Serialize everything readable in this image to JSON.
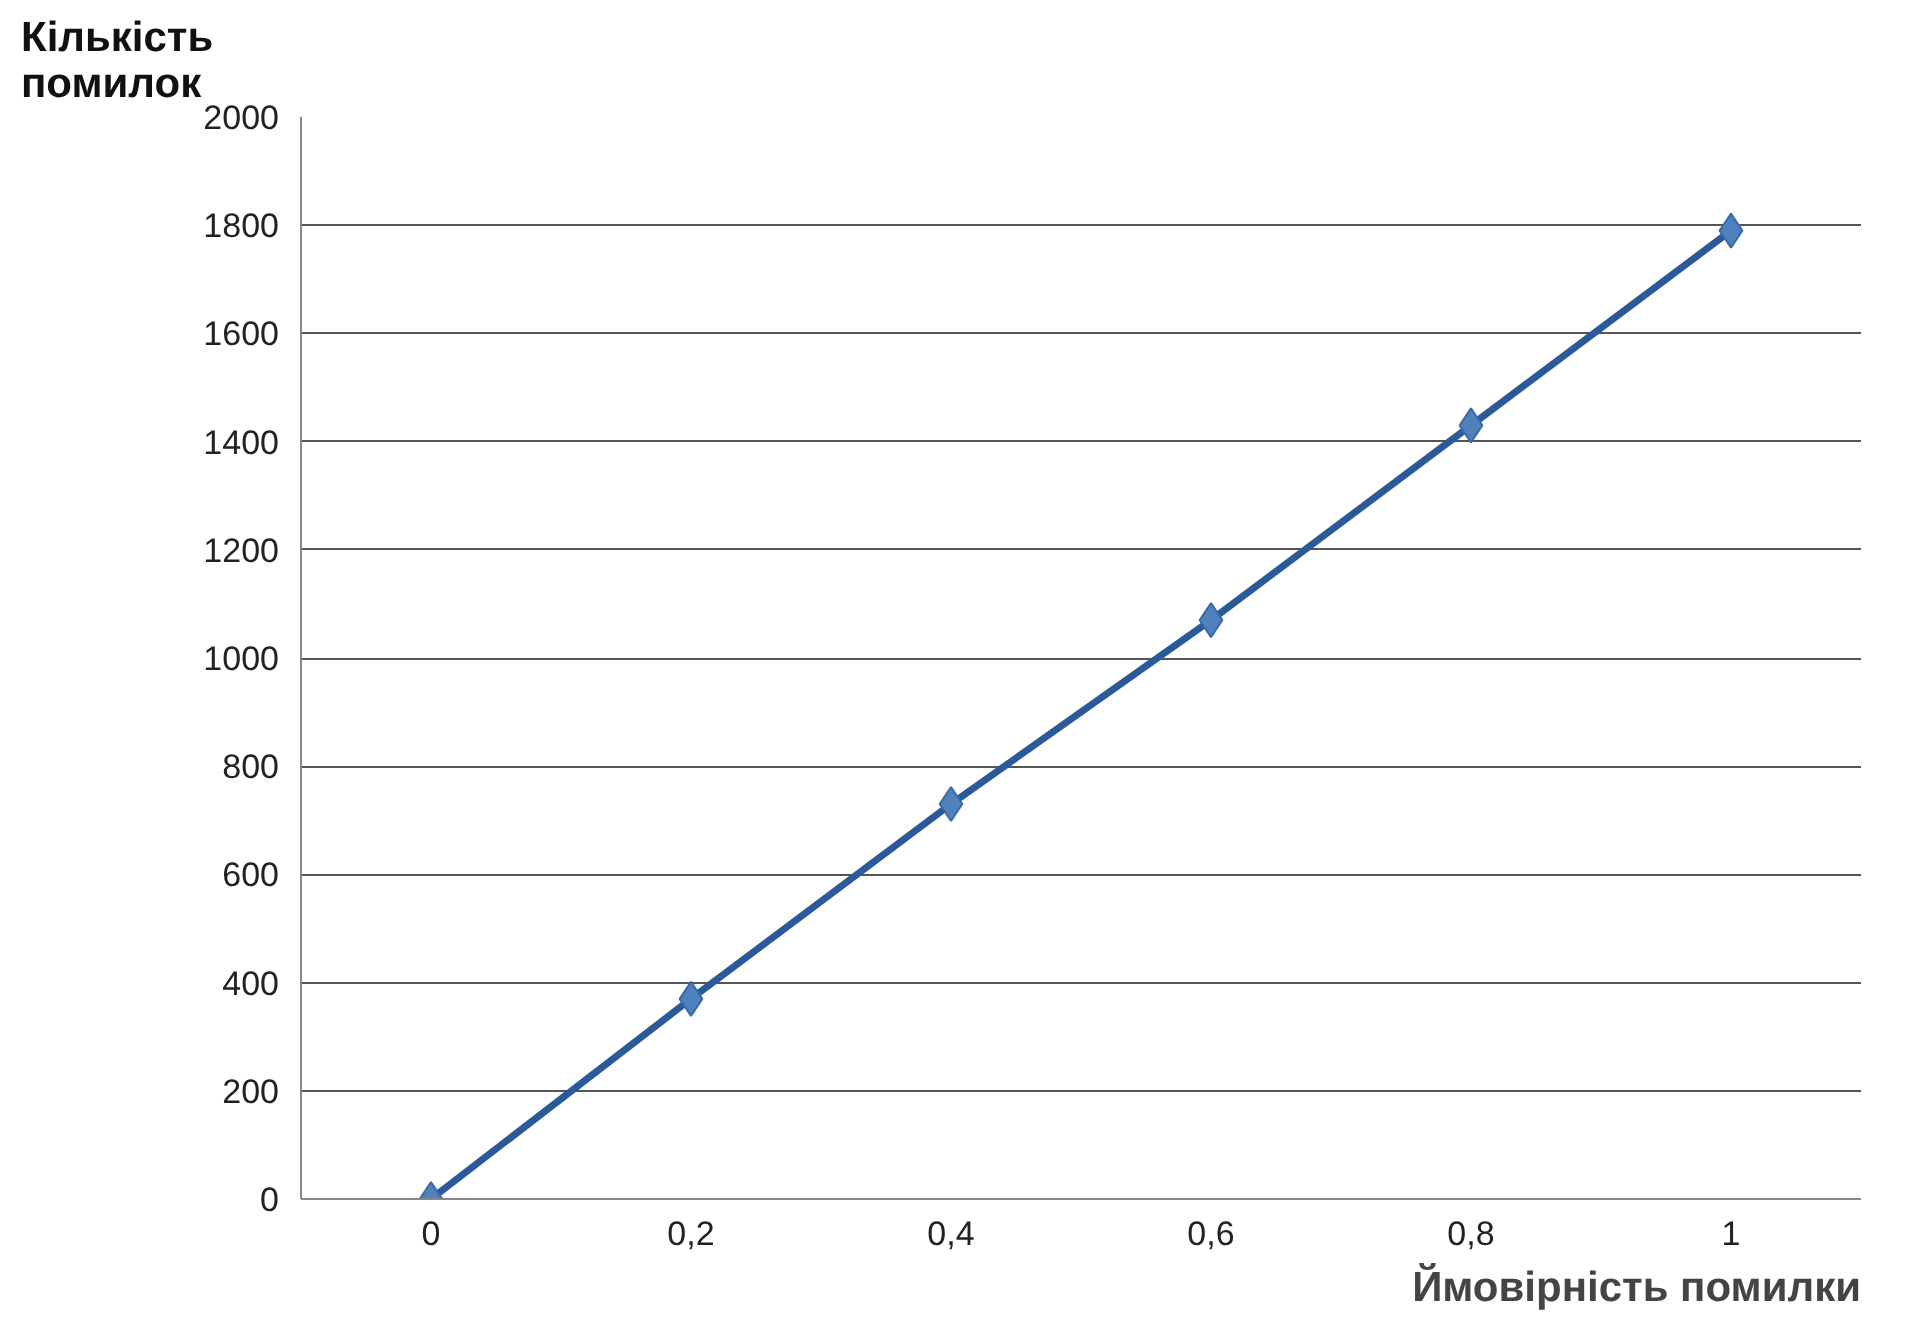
{
  "chart_data": {
    "type": "line",
    "ylabel": "Кількість помилок",
    "xlabel": "Ймовірність помилки",
    "categories": [
      "0",
      "0,2",
      "0,4",
      "0,6",
      "0,8",
      "1"
    ],
    "series": [
      {
        "color": "#2a5a9a",
        "values": [
          0,
          370,
          730,
          1070,
          1430,
          1790
        ]
      }
    ],
    "ylim": [
      0,
      2000
    ],
    "yticks": [
      0,
      200,
      400,
      600,
      800,
      1000,
      1200,
      1400,
      1600,
      1800,
      2000
    ],
    "grid": "y",
    "marker": "diamond",
    "line_style": "solid"
  }
}
